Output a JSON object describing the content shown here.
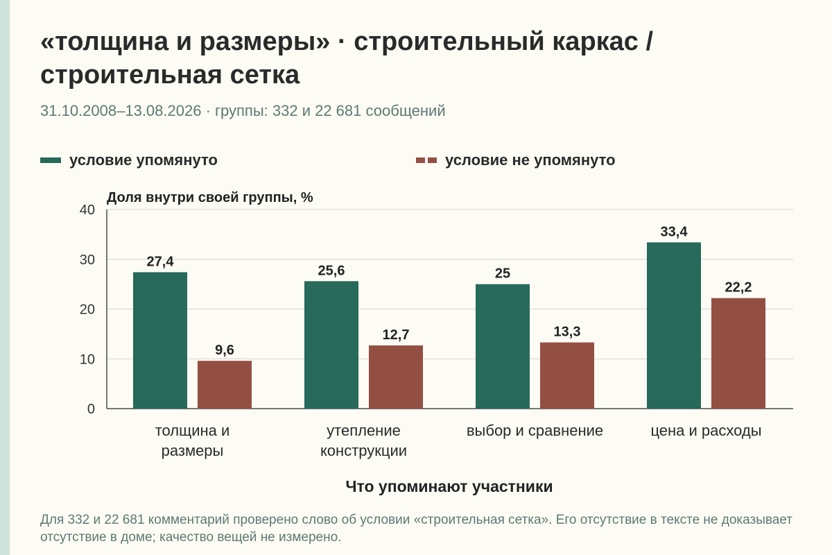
{
  "header": {
    "title": "«толщина и размеры» · строительный каркас / строительная сетка",
    "subtitle": "31.10.2008–13.08.2026 · группы: 332 и 22 681 сообщений"
  },
  "footnote": "Для 332 и 22 681 комментарий проверено слово об условии «строительная сетка». Его отсутствие в тексте не доказывает отсутствие в доме; качество вещей не измерено.",
  "colors": {
    "mentioned": "#27695a",
    "not_mentioned": "#944f43",
    "accent_strip": "#cfe1db"
  },
  "chart_data": {
    "type": "bar",
    "title": "",
    "ylabel": "Доля внутри своей группы, %",
    "xlabel": "Что упоминают участники",
    "ylim": [
      0,
      40
    ],
    "yticks": [
      0,
      10,
      20,
      30,
      40
    ],
    "grid": true,
    "legend_position": "top",
    "categories": [
      [
        "толщина и",
        "размеры"
      ],
      [
        "утепление",
        "конструкции"
      ],
      [
        "выбор и сравнение"
      ],
      [
        "цена и расходы"
      ]
    ],
    "series": [
      {
        "name": "условие упомянуто",
        "color": "#27695a",
        "style": "solid",
        "values": [
          27.4,
          25.6,
          25,
          33.4
        ],
        "labels": [
          "27,4",
          "25,6",
          "25",
          "33,4"
        ]
      },
      {
        "name": "условие не упомянуто",
        "color": "#944f43",
        "style": "dashed",
        "values": [
          9.6,
          12.7,
          13.3,
          22.2
        ],
        "labels": [
          "9,6",
          "12,7",
          "13,3",
          "22,2"
        ]
      }
    ]
  }
}
